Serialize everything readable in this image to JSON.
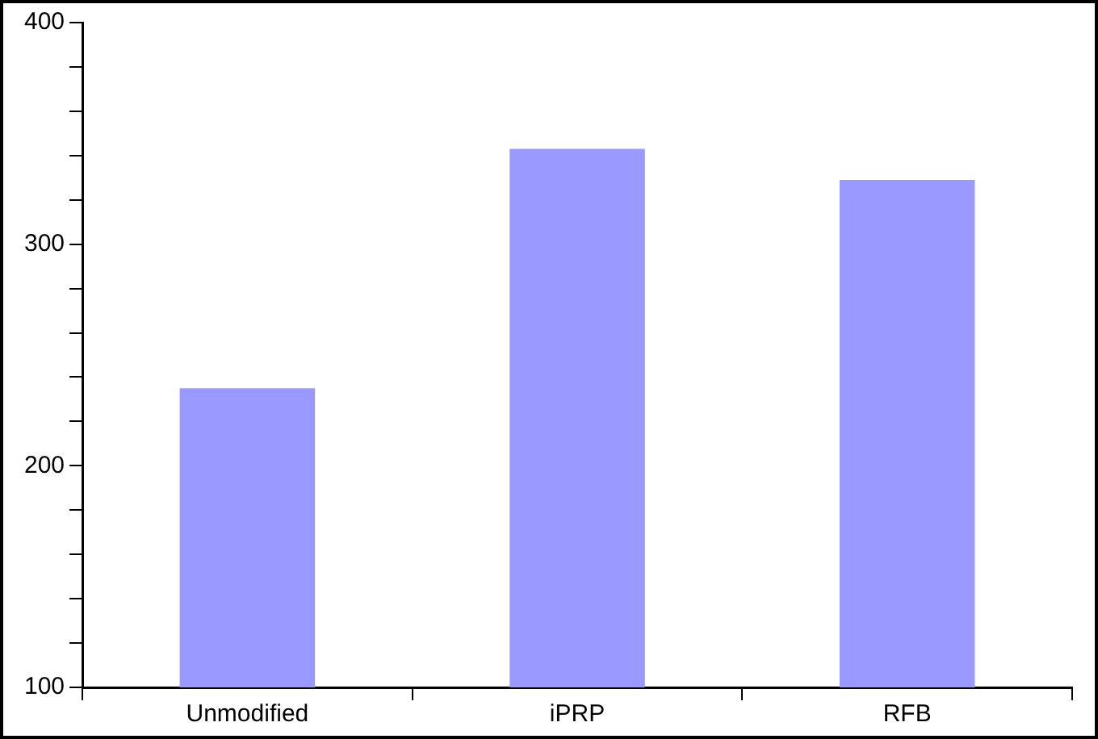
{
  "chart_data": {
    "type": "bar",
    "categories": [
      "Unmodified",
      "iPRP",
      "RFB"
    ],
    "series": [
      {
        "color": "#9999ff",
        "values": [
          235,
          343,
          329
        ]
      }
    ],
    "ylim": [
      100,
      400
    ],
    "yticks": [
      100,
      {
        "value": 120,
        "label": null
      },
      {
        "value": 140,
        "label": null
      },
      {
        "value": 160,
        "label": null
      },
      {
        "value": 180,
        "label": null
      },
      200,
      {
        "value": 220,
        "label": null
      },
      {
        "value": 240,
        "label": null
      },
      {
        "value": 260,
        "label": null
      },
      {
        "value": 280,
        "label": null
      },
      300,
      {
        "value": 320,
        "label": null
      },
      {
        "value": 340,
        "label": null
      },
      {
        "value": 360,
        "label": null
      },
      {
        "value": 380,
        "label": null
      },
      400
    ],
    "grid": false,
    "legend": false
  }
}
